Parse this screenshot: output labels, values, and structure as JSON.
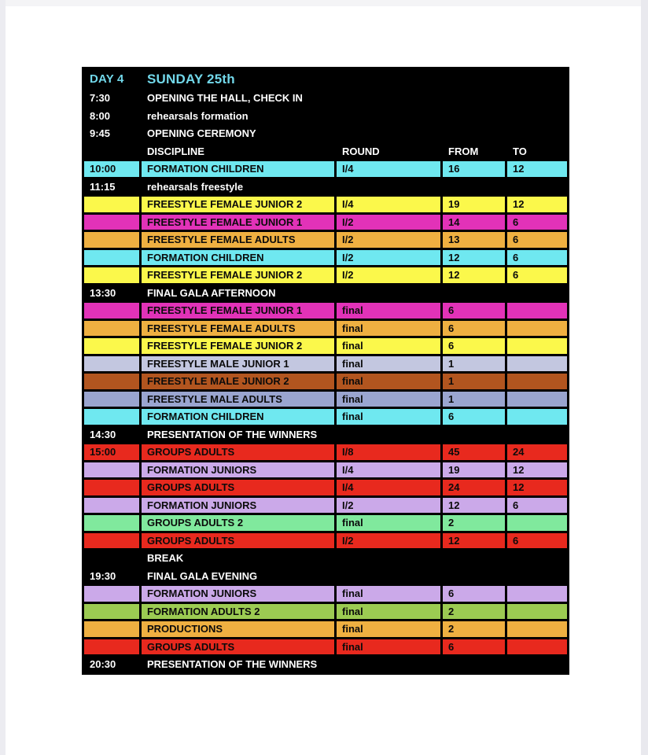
{
  "palette": {
    "black": "#000000",
    "cyan": "#6fe8f0",
    "yellow": "#fbf84b",
    "magenta": "#e232b8",
    "orange": "#efb041",
    "periwinkle": "#c3c7e0",
    "brown": "#b2551f",
    "blue": "#9aa5d0",
    "red": "#e8291e",
    "lavender": "#cba9e9",
    "green": "#80e99d",
    "olive": "#9ccb52",
    "title_text": "#72d8ea",
    "header_text": "#ffffff"
  },
  "title": {
    "day": "DAY 4",
    "date": "SUNDAY 25th"
  },
  "columns": {
    "discipline": "DISCIPLINE",
    "round": "ROUND",
    "from": "FROM",
    "to": "TO"
  },
  "rows": [
    {
      "type": "title",
      "time": "DAY 4",
      "text": "SUNDAY 25th"
    },
    {
      "type": "info",
      "time": "7:30",
      "text": "OPENING THE HALL, CHECK IN"
    },
    {
      "type": "info",
      "time": "8:00",
      "text": "rehearsals formation"
    },
    {
      "type": "info",
      "time": "9:45",
      "text": "OPENING CEREMONY"
    },
    {
      "type": "colhead",
      "time": ""
    },
    {
      "type": "event",
      "color": "cyan",
      "time": "10:00",
      "discipline": "FORMATION CHILDREN",
      "round": "I/4",
      "from": "16",
      "to": "12"
    },
    {
      "type": "info",
      "time": "11:15",
      "text": "rehearsals freestyle"
    },
    {
      "type": "event",
      "color": "yellow",
      "time": "",
      "discipline": "FREESTYLE FEMALE JUNIOR 2",
      "round": "I/4",
      "from": "19",
      "to": "12"
    },
    {
      "type": "event",
      "color": "magenta",
      "time": "",
      "discipline": "FREESTYLE FEMALE JUNIOR 1",
      "round": "I/2",
      "from": "14",
      "to": "6"
    },
    {
      "type": "event",
      "color": "orange",
      "time": "",
      "discipline": "FREESTYLE FEMALE ADULTS",
      "round": "I/2",
      "from": "13",
      "to": "6"
    },
    {
      "type": "event",
      "color": "cyan",
      "time": "",
      "discipline": "FORMATION CHILDREN",
      "round": "I/2",
      "from": "12",
      "to": "6"
    },
    {
      "type": "event",
      "color": "yellow",
      "time": "",
      "discipline": "FREESTYLE FEMALE JUNIOR 2",
      "round": "I/2",
      "from": "12",
      "to": "6"
    },
    {
      "type": "info",
      "time": "13:30",
      "text": "FINAL GALA AFTERNOON"
    },
    {
      "type": "event",
      "color": "magenta",
      "time": "",
      "discipline": "FREESTYLE FEMALE JUNIOR 1",
      "round": "final",
      "from": "6",
      "to": ""
    },
    {
      "type": "event",
      "color": "orange",
      "time": "",
      "discipline": "FREESTYLE FEMALE ADULTS",
      "round": "final",
      "from": "6",
      "to": ""
    },
    {
      "type": "event",
      "color": "yellow",
      "time": "",
      "discipline": "FREESTYLE FEMALE JUNIOR 2",
      "round": "final",
      "from": "6",
      "to": ""
    },
    {
      "type": "event",
      "color": "periwinkle",
      "time": "",
      "discipline": "FREESTYLE MALE JUNIOR 1",
      "round": "final",
      "from": "1",
      "to": ""
    },
    {
      "type": "event",
      "color": "brown",
      "time": "",
      "discipline": "FREESTYLE MALE JUNIOR 2",
      "round": "final",
      "from": "1",
      "to": ""
    },
    {
      "type": "event",
      "color": "blue",
      "time": "",
      "discipline": "FREESTYLE MALE ADULTS",
      "round": "final",
      "from": "1",
      "to": ""
    },
    {
      "type": "event",
      "color": "cyan",
      "time": "",
      "discipline": "FORMATION CHILDREN",
      "round": "final",
      "from": "6",
      "to": ""
    },
    {
      "type": "info",
      "time": "14:30",
      "text": "PRESENTATION OF THE WINNERS"
    },
    {
      "type": "event",
      "color": "red",
      "time": "15:00",
      "discipline": "GROUPS ADULTS",
      "round": "I/8",
      "from": "45",
      "to": "24"
    },
    {
      "type": "event",
      "color": "lavender",
      "time": "",
      "discipline": "FORMATION JUNIORS",
      "round": "I/4",
      "from": "19",
      "to": "12"
    },
    {
      "type": "event",
      "color": "red",
      "time": "",
      "discipline": "GROUPS ADULTS",
      "round": "I/4",
      "from": "24",
      "to": "12"
    },
    {
      "type": "event",
      "color": "lavender",
      "time": "",
      "discipline": "FORMATION JUNIORS",
      "round": "I/2",
      "from": "12",
      "to": "6"
    },
    {
      "type": "event",
      "color": "green",
      "time": "",
      "discipline": "GROUPS ADULTS 2",
      "round": "final",
      "from": "2",
      "to": ""
    },
    {
      "type": "event",
      "color": "red",
      "time": "",
      "discipline": "GROUPS ADULTS",
      "round": "I/2",
      "from": "12",
      "to": "6"
    },
    {
      "type": "info",
      "time": "",
      "text": "BREAK"
    },
    {
      "type": "info",
      "time": "19:30",
      "text": "FINAL GALA EVENING"
    },
    {
      "type": "event",
      "color": "lavender",
      "time": "",
      "discipline": "FORMATION JUNIORS",
      "round": "final",
      "from": "6",
      "to": ""
    },
    {
      "type": "event",
      "color": "olive",
      "time": "",
      "discipline": "FORMATION ADULTS 2",
      "round": "final",
      "from": "2",
      "to": ""
    },
    {
      "type": "event",
      "color": "orange",
      "time": "",
      "discipline": "PRODUCTIONS",
      "round": "final",
      "from": "2",
      "to": ""
    },
    {
      "type": "event",
      "color": "red",
      "time": "",
      "discipline": "GROUPS ADULTS",
      "round": "final",
      "from": "6",
      "to": ""
    },
    {
      "type": "info",
      "time": "20:30",
      "text": "PRESENTATION OF THE WINNERS"
    }
  ]
}
